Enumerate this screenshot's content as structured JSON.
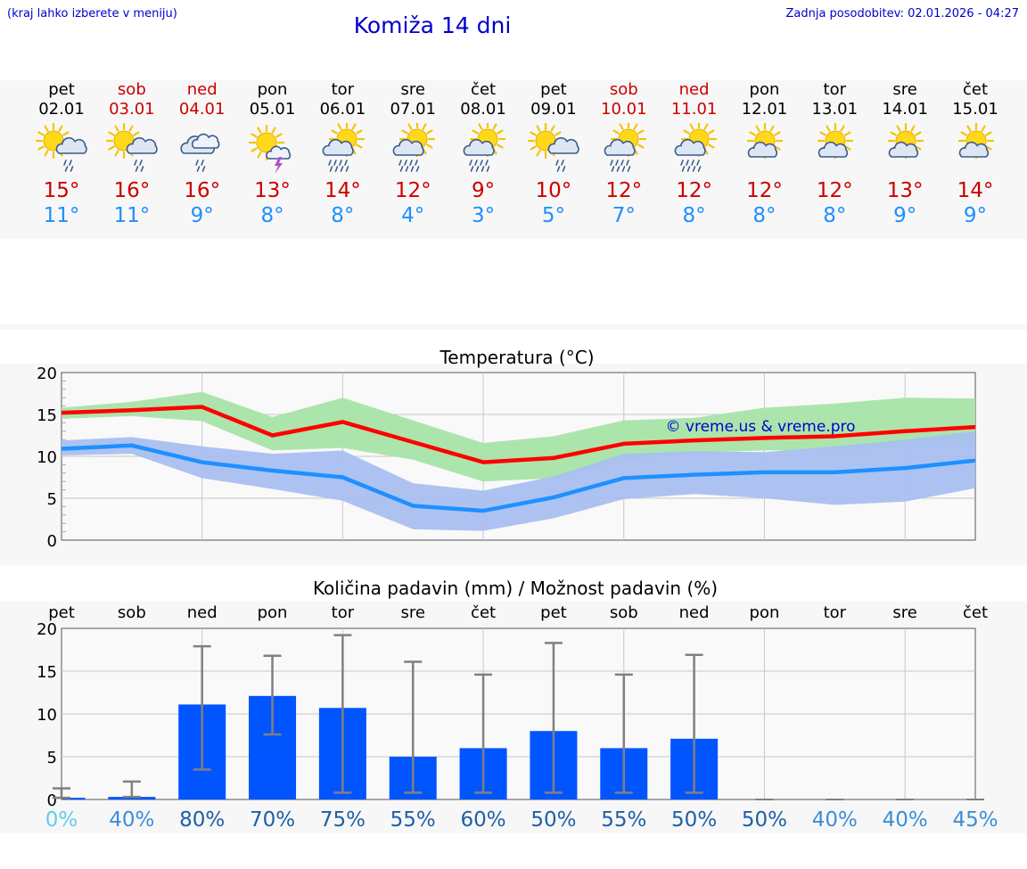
{
  "header": {
    "hint": "(kraj lahko izberete v meniju)",
    "title": "Komiža 14 dni",
    "updated": "Zadnja posodobitev: 02.01.2026 - 04:27"
  },
  "days": [
    {
      "wd": "pet",
      "date": "02.01",
      "weekend": false,
      "icon": "sun-cloud-rain-icon",
      "tmax": "15°",
      "tmin": "11°"
    },
    {
      "wd": "sob",
      "date": "03.01",
      "weekend": true,
      "icon": "sun-cloud-rain-icon",
      "tmax": "16°",
      "tmin": "11°"
    },
    {
      "wd": "ned",
      "date": "04.01",
      "weekend": true,
      "icon": "cloud-rain-icon",
      "tmax": "16°",
      "tmin": "9°"
    },
    {
      "wd": "pon",
      "date": "05.01",
      "weekend": false,
      "icon": "sun-thunder-icon",
      "tmax": "13°",
      "tmin": "8°"
    },
    {
      "wd": "tor",
      "date": "06.01",
      "weekend": false,
      "icon": "sun-heavy-rain-icon",
      "tmax": "14°",
      "tmin": "8°"
    },
    {
      "wd": "sre",
      "date": "07.01",
      "weekend": false,
      "icon": "sun-heavy-rain-icon",
      "tmax": "12°",
      "tmin": "4°"
    },
    {
      "wd": "čet",
      "date": "08.01",
      "weekend": false,
      "icon": "sun-heavy-rain-icon",
      "tmax": "9°",
      "tmin": "3°"
    },
    {
      "wd": "pet",
      "date": "09.01",
      "weekend": false,
      "icon": "sun-cloud-rain-icon",
      "tmax": "10°",
      "tmin": "5°"
    },
    {
      "wd": "sob",
      "date": "10.01",
      "weekend": true,
      "icon": "sun-heavy-rain-icon",
      "tmax": "12°",
      "tmin": "7°"
    },
    {
      "wd": "ned",
      "date": "11.01",
      "weekend": true,
      "icon": "sun-heavy-rain-icon",
      "tmax": "12°",
      "tmin": "8°"
    },
    {
      "wd": "pon",
      "date": "12.01",
      "weekend": false,
      "icon": "sun-cloud-icon",
      "tmax": "12°",
      "tmin": "8°"
    },
    {
      "wd": "tor",
      "date": "13.01",
      "weekend": false,
      "icon": "sun-cloud-icon",
      "tmax": "12°",
      "tmin": "8°"
    },
    {
      "wd": "sre",
      "date": "14.01",
      "weekend": false,
      "icon": "sun-cloud-icon",
      "tmax": "13°",
      "tmin": "9°"
    },
    {
      "wd": "čet",
      "date": "15.01",
      "weekend": false,
      "icon": "sun-cloud-icon",
      "tmax": "14°",
      "tmin": "9°"
    }
  ],
  "colors": {
    "max": "#ff0000",
    "maxBand": "#a8e4a8",
    "min": "#1e90ff",
    "minBand": "#a9bff0",
    "overlap": "#5fb4a0",
    "bar": "#0055ff",
    "err": "#808080",
    "grid": "#c8c8c8",
    "bg": "#f7f7f7",
    "title": "#0000cc",
    "weekend": "#cc0000"
  },
  "chart_data": [
    {
      "type": "line",
      "title": "Temperatura (°C)",
      "watermark": "© vreme.us & vreme.pro",
      "ylim": [
        0,
        20
      ],
      "yticks": [
        0,
        5,
        10,
        15,
        20
      ],
      "x": [
        "02.01",
        "03.01",
        "04.01",
        "05.01",
        "06.01",
        "07.01",
        "08.01",
        "09.01",
        "10.01",
        "11.01",
        "12.01",
        "13.01",
        "14.01",
        "15.01"
      ],
      "series": [
        {
          "name": "max",
          "values": [
            15.2,
            15.5,
            15.9,
            12.5,
            14.1,
            11.7,
            9.3,
            9.8,
            11.5,
            11.9,
            12.2,
            12.4,
            13.0,
            13.5
          ]
        },
        {
          "name": "max_low",
          "values": [
            14.5,
            14.8,
            14.2,
            10.7,
            11.0,
            9.6,
            7.0,
            7.4,
            9.5,
            10.4,
            10.7,
            10.7,
            11.0,
            11.2
          ]
        },
        {
          "name": "max_high",
          "values": [
            15.8,
            16.5,
            17.7,
            14.7,
            17.0,
            14.3,
            11.6,
            12.4,
            14.3,
            14.6,
            15.8,
            16.3,
            17.0,
            16.9
          ]
        },
        {
          "name": "min",
          "values": [
            10.9,
            11.3,
            9.3,
            8.3,
            7.5,
            4.1,
            3.5,
            5.1,
            7.4,
            7.8,
            8.1,
            8.1,
            8.6,
            9.5
          ]
        },
        {
          "name": "min_low",
          "values": [
            10.1,
            10.3,
            7.4,
            6.1,
            4.7,
            1.3,
            1.1,
            2.6,
            4.9,
            5.5,
            5.0,
            4.2,
            4.6,
            6.2
          ]
        },
        {
          "name": "min_high",
          "values": [
            11.9,
            12.3,
            11.2,
            10.3,
            10.7,
            6.8,
            5.9,
            7.6,
            10.3,
            10.6,
            10.5,
            11.2,
            12.0,
            13.0
          ]
        }
      ]
    },
    {
      "type": "bar",
      "title": "Količina padavin (mm) / Možnost padavin (%)",
      "ylim": [
        0,
        20
      ],
      "yticks": [
        0,
        5,
        10,
        15,
        20
      ],
      "categories": [
        "pet",
        "sob",
        "ned",
        "pon",
        "tor",
        "sre",
        "čet",
        "pet",
        "sob",
        "ned",
        "pon",
        "tor",
        "sre",
        "čet"
      ],
      "values": [
        0.2,
        0.3,
        11.1,
        12.1,
        10.7,
        5.0,
        6.0,
        8.0,
        6.0,
        7.1,
        0,
        0,
        0,
        0
      ],
      "err_low": [
        0.2,
        0.3,
        3.5,
        7.6,
        0.8,
        0.8,
        0.8,
        0.8,
        0.8,
        0.8,
        0,
        0,
        0,
        0
      ],
      "err_high": [
        1.3,
        2.1,
        17.9,
        16.8,
        19.2,
        16.1,
        14.6,
        18.3,
        14.6,
        16.9,
        0,
        0,
        0,
        0
      ],
      "probability": [
        "0%",
        "40%",
        "80%",
        "70%",
        "75%",
        "55%",
        "60%",
        "50%",
        "55%",
        "50%",
        "50%",
        "40%",
        "40%",
        "45%"
      ],
      "probability_colors": [
        "#5fd0e8",
        "#3c8ed8",
        "#1e5fa8",
        "#1e5fa8",
        "#1e5fa8",
        "#1e5fa8",
        "#1e5fa8",
        "#1e5fa8",
        "#1e5fa8",
        "#1e5fa8",
        "#1e5fa8",
        "#3c8ed8",
        "#3c8ed8",
        "#3c8ed8"
      ]
    }
  ]
}
